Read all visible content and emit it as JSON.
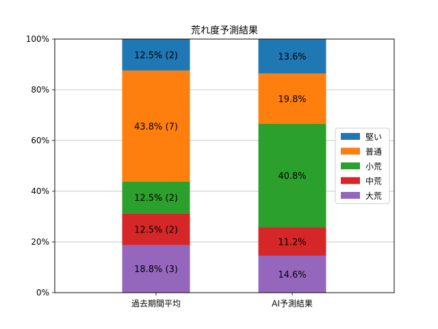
{
  "chart_data": {
    "type": "bar",
    "stacked": true,
    "title": "荒れ度予測結果",
    "xlabel": "",
    "ylabel": "",
    "ylim": [
      0,
      100
    ],
    "y_ticks": [
      "0%",
      "20%",
      "40%",
      "60%",
      "80%",
      "100%"
    ],
    "grid": "y",
    "legend_position": "right",
    "categories": [
      "過去期間平均",
      "AI予測結果"
    ],
    "series": [
      {
        "name": "大荒",
        "color": "#9467bd",
        "values": [
          18.8,
          14.6
        ],
        "labels": [
          "18.8% (3)",
          "14.6%"
        ]
      },
      {
        "name": "中荒",
        "color": "#d62728",
        "values": [
          12.5,
          11.2
        ],
        "labels": [
          "12.5% (2)",
          "11.2%"
        ]
      },
      {
        "name": "小荒",
        "color": "#2ca02c",
        "values": [
          12.5,
          40.8
        ],
        "labels": [
          "12.5% (2)",
          "40.8%"
        ]
      },
      {
        "name": "普通",
        "color": "#ff7f0e",
        "values": [
          43.8,
          19.8
        ],
        "labels": [
          "43.8% (7)",
          "19.8%"
        ]
      },
      {
        "name": "堅い",
        "color": "#1f77b4",
        "values": [
          12.5,
          13.6
        ],
        "labels": [
          "12.5% (2)",
          "13.6%"
        ]
      }
    ],
    "legend_order": [
      "堅い",
      "普通",
      "小荒",
      "中荒",
      "大荒"
    ]
  }
}
